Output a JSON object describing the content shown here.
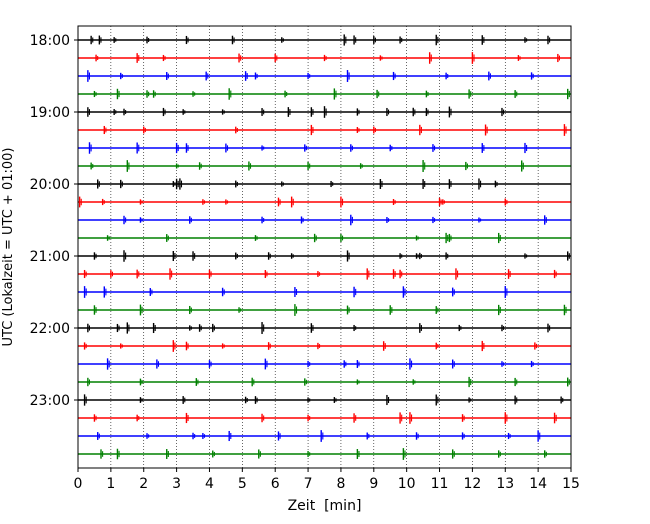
{
  "chart_data": {
    "type": "line",
    "title": "",
    "xlabel": "Zeit  [min]",
    "ylabel": "UTC (Lokalzeit = UTC + 01:00)",
    "xlim": [
      0,
      15
    ],
    "xticks": [
      "0",
      "1",
      "2",
      "3",
      "4",
      "5",
      "6",
      "7",
      "8",
      "9",
      "10",
      "11",
      "12",
      "13",
      "14",
      "15"
    ],
    "yticks": [
      "18:00",
      "19:00",
      "20:00",
      "21:00",
      "22:00",
      "23:00"
    ],
    "grid_x": true,
    "trace_interval_min": 15,
    "trace_colors": [
      "#000000",
      "#ff0000",
      "#0000ff",
      "#008000"
    ],
    "traces": [
      {
        "start": "18:00",
        "events": [
          0.4,
          0.65,
          1.1,
          2.1,
          3.3,
          4.7,
          6.2,
          8.1,
          8.4,
          9.0,
          9.8,
          10.9,
          12.3,
          13.6,
          14.3
        ]
      },
      {
        "start": "18:15",
        "events": [
          0.55,
          1.8,
          2.6,
          4.9,
          6.0,
          7.5,
          9.2,
          10.7,
          12.0,
          13.4,
          14.6
        ]
      },
      {
        "start": "18:30",
        "events": [
          0.3,
          1.3,
          2.7,
          3.9,
          5.1,
          5.4,
          7.0,
          8.2,
          9.6,
          11.2,
          12.5,
          13.8
        ]
      },
      {
        "start": "18:45",
        "events": [
          0.5,
          1.2,
          2.1,
          2.3,
          3.5,
          4.6,
          6.3,
          7.8,
          9.1,
          10.6,
          11.9,
          13.3,
          14.9
        ]
      },
      {
        "start": "19:00",
        "events": [
          0.3,
          1.1,
          1.4,
          2.6,
          3.2,
          4.4,
          5.6,
          6.4,
          7.1,
          7.5,
          8.5,
          9.4,
          10.2,
          10.6,
          11.3,
          12.9
        ]
      },
      {
        "start": "19:15",
        "events": [
          0.8,
          2.0,
          4.8,
          7.1,
          8.5,
          9.0,
          10.4,
          12.4,
          14.8
        ]
      },
      {
        "start": "19:30",
        "events": [
          0.35,
          1.8,
          3.0,
          3.3,
          4.5,
          5.6,
          6.9,
          8.3,
          9.5,
          10.8,
          12.3,
          13.6
        ]
      },
      {
        "start": "19:45",
        "events": [
          0.4,
          1.5,
          3.0,
          3.7,
          5.2,
          7.0,
          8.6,
          10.5,
          11.8,
          13.5
        ]
      },
      {
        "start": "20:00",
        "events": [
          0.6,
          1.3,
          2.9,
          3.0,
          3.1,
          4.8,
          6.2,
          7.7,
          9.2,
          10.5,
          11.3,
          12.2,
          12.7
        ]
      },
      {
        "start": "20:15",
        "events": [
          0.05,
          0.75,
          1.9,
          3.8,
          4.5,
          6.1,
          6.5,
          8.0,
          9.6,
          11.0,
          11.1,
          13.0
        ]
      },
      {
        "start": "20:30",
        "events": [
          1.4,
          1.9,
          3.4,
          5.6,
          6.8,
          8.3,
          9.4,
          10.8,
          12.2,
          14.2
        ]
      },
      {
        "start": "20:45",
        "events": [
          0.9,
          2.7,
          5.4,
          7.2,
          8.0,
          10.3,
          11.2,
          11.3,
          12.8
        ]
      },
      {
        "start": "21:00",
        "events": [
          0.5,
          1.4,
          2.9,
          3.5,
          4.8,
          5.8,
          6.5,
          8.2,
          9.8,
          10.3,
          10.4,
          11.2,
          13.6,
          14.9
        ]
      },
      {
        "start": "21:15",
        "events": [
          0.2,
          1.0,
          1.8,
          2.8,
          4.0,
          5.7,
          7.3,
          8.8,
          9.6,
          9.8,
          11.5,
          13.1,
          14.5
        ]
      },
      {
        "start": "21:30",
        "events": [
          0.2,
          0.8,
          2.2,
          4.4,
          6.6,
          8.4,
          9.9,
          11.4,
          13.0
        ]
      },
      {
        "start": "21:45",
        "events": [
          0.5,
          1.9,
          3.4,
          4.9,
          6.6,
          8.2,
          9.5,
          10.9,
          12.8,
          14.8
        ]
      },
      {
        "start": "22:00",
        "events": [
          0.3,
          1.2,
          1.5,
          2.3,
          3.4,
          3.7,
          4.1,
          5.6,
          7.1,
          8.4,
          10.4,
          11.6,
          12.9,
          14.3
        ]
      },
      {
        "start": "22:15",
        "events": [
          0.2,
          1.3,
          2.9,
          3.3,
          4.4,
          5.8,
          7.3,
          9.3,
          10.9,
          12.3,
          13.9
        ]
      },
      {
        "start": "22:30",
        "events": [
          0.9,
          2.4,
          4.0,
          5.7,
          7.0,
          8.1,
          8.5,
          10.1,
          11.4,
          12.9,
          13.8
        ]
      },
      {
        "start": "22:45",
        "events": [
          0.3,
          1.9,
          3.6,
          5.3,
          6.9,
          8.5,
          10.2,
          11.9,
          13.3,
          14.9
        ]
      },
      {
        "start": "23:00",
        "events": [
          0.2,
          1.9,
          3.2,
          5.1,
          5.4,
          7.0,
          7.8,
          9.4,
          10.9,
          11.9,
          13.3,
          14.7
        ]
      },
      {
        "start": "23:15",
        "events": [
          0.5,
          1.8,
          3.3,
          5.6,
          7.0,
          8.4,
          9.8,
          10.1,
          11.7,
          13.0,
          14.5
        ]
      },
      {
        "start": "23:30",
        "events": [
          0.6,
          2.1,
          3.5,
          3.8,
          4.6,
          6.1,
          7.4,
          8.8,
          10.3,
          11.7,
          13.1,
          14.0
        ]
      },
      {
        "start": "23:45",
        "events": [
          0.7,
          1.2,
          2.7,
          4.1,
          5.5,
          7.0,
          8.5,
          9.9,
          11.4,
          12.8,
          14.2
        ]
      }
    ]
  }
}
